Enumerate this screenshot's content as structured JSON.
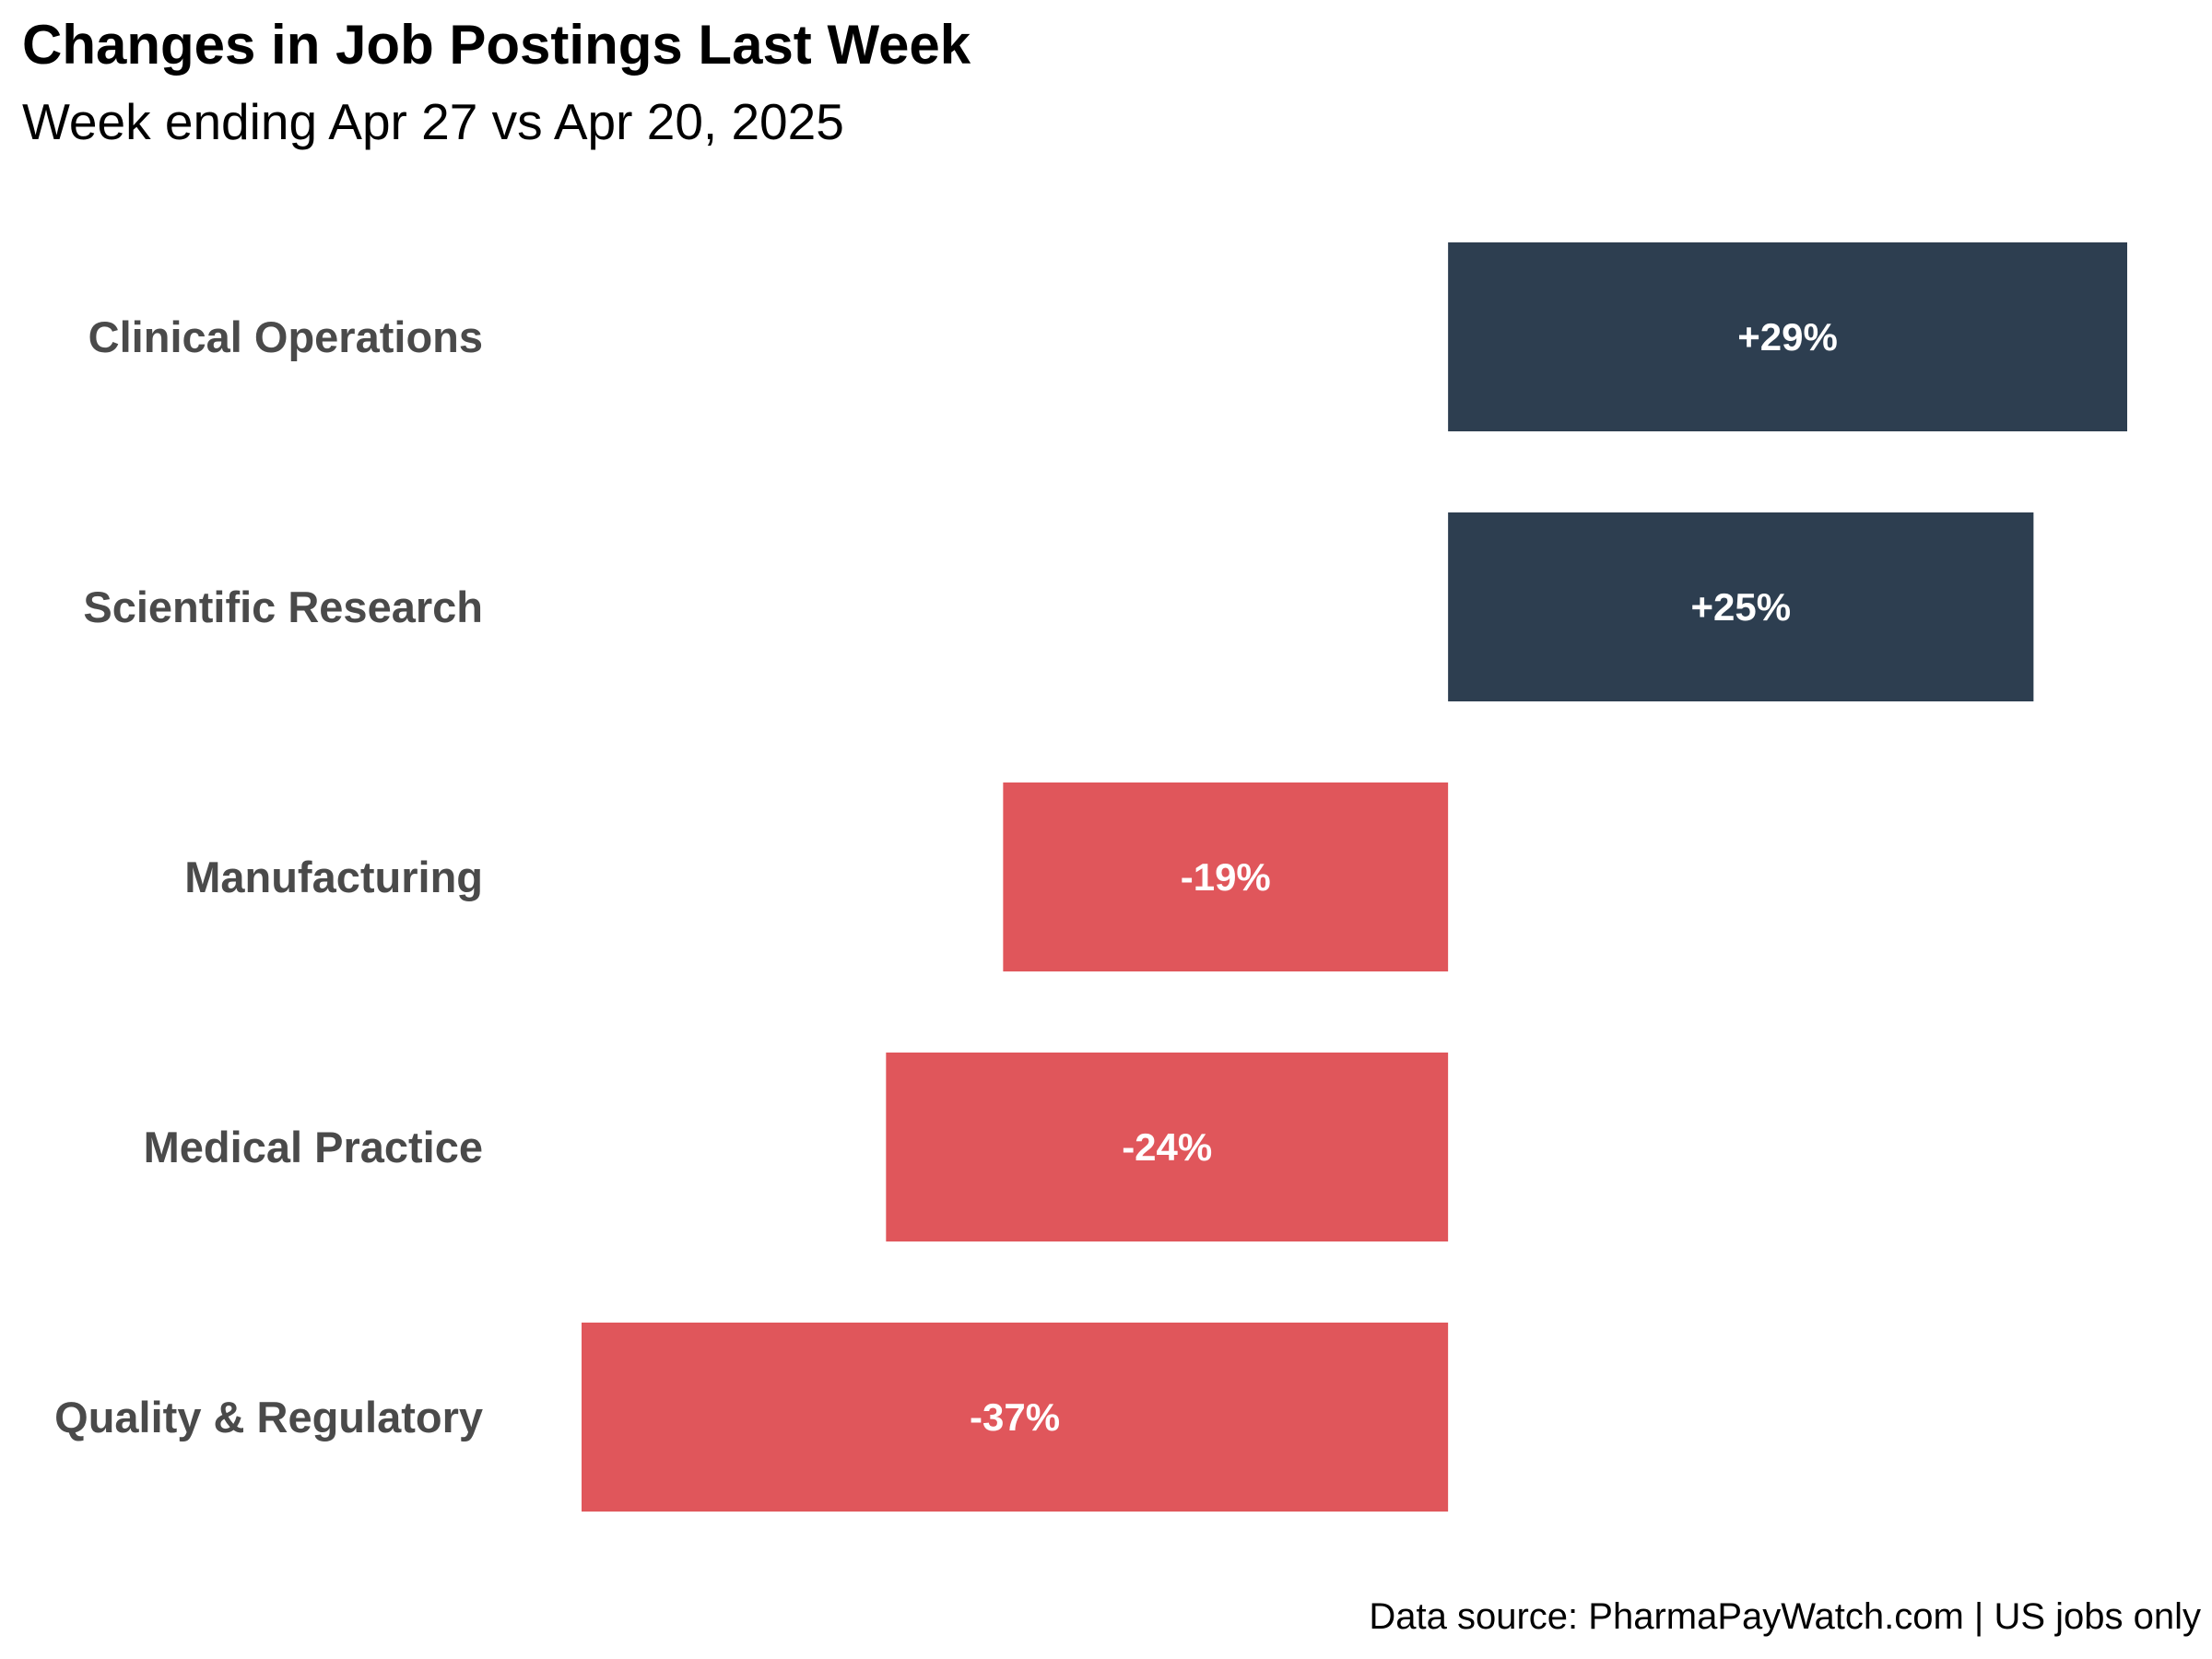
{
  "chart_data": {
    "type": "bar",
    "orientation": "horizontal",
    "title": "Changes in Job Postings Last Week",
    "subtitle": "Week ending Apr 27 vs Apr 20, 2025",
    "caption": "Data source: PharmaPayWatch.com | US jobs only",
    "categories": [
      "Clinical Operations",
      "Scientific Research",
      "Manufacturing",
      "Medical Practice",
      "Quality & Regulatory"
    ],
    "values": [
      29,
      25,
      -19,
      -24,
      -37
    ],
    "value_labels": [
      "+29%",
      "+25%",
      "-19%",
      "-24%",
      "-37%"
    ],
    "unit": "%",
    "xlim": [
      -37,
      29
    ],
    "grid": false,
    "legend": "none",
    "colors": {
      "positive": "#2d3e50",
      "negative": "#e0565b",
      "category_text": "#4a4a4a",
      "bar_text": "#ffffff"
    }
  }
}
